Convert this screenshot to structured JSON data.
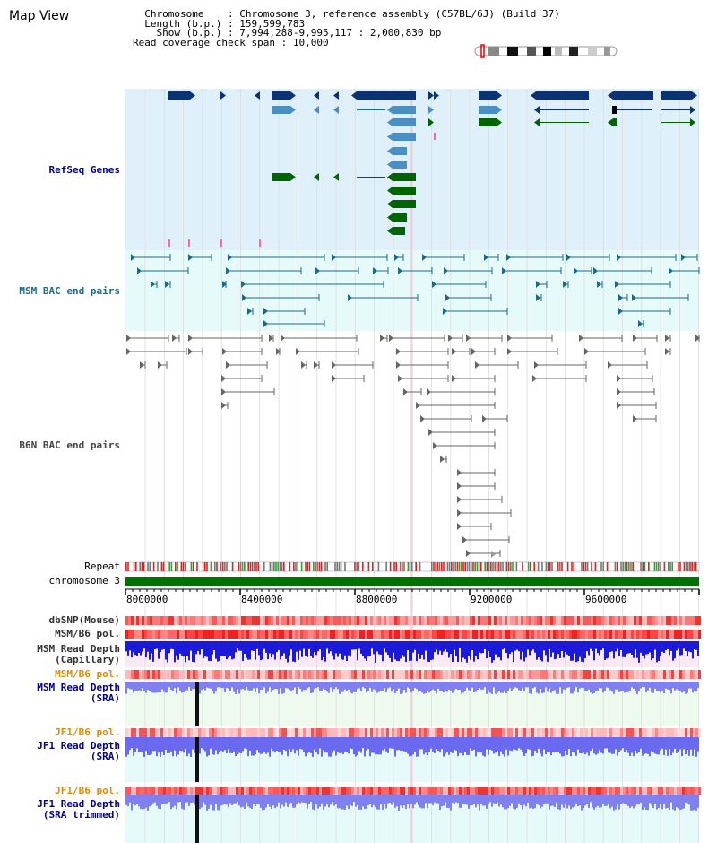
{
  "map_title": "Map View",
  "info": {
    "chromosome_label": "Chromosome",
    "chromosome_value": "Chromosome 3, reference assembly (C57BL/6J) (Build 37)",
    "length_label": "Length (b.p.)",
    "length_value": "159,599,783",
    "show_label": "Show (b.p.)",
    "show_value": "7,994,288-9,995,117 : 2,000,830 bp",
    "coverage_label": "Read coverage check span",
    "coverage_value": "10,000"
  },
  "tracks": {
    "refseq": "RefSeq Genes",
    "msm_bac": "MSM BAC end pairs",
    "b6n_bac": "B6N BAC end pairs",
    "repeat": "Repeat",
    "chromosome": "chromosome 3",
    "dbsnp": "dbSNP(Mouse)",
    "msm_b6_pol_1": "MSM/B6 pol.",
    "msm_depth_cap_1": "MSM Read Depth",
    "msm_depth_cap_2": "(Capillary)",
    "msm_b6_pol_2": "MSM/B6 pol.",
    "msm_depth_sra_1": "MSM Read Depth",
    "msm_depth_sra_2": "(SRA)",
    "jf1_b6_pol_1": "JF1/B6 pol.",
    "jf1_depth_sra_1": "JF1 Read Depth",
    "jf1_depth_sra_2": "(SRA)",
    "jf1_b6_pol_2": "JF1/B6 pol.",
    "jf1_depth_trim_1": "JF1 Read Depth",
    "jf1_depth_trim_2": "(SRA trimmed)"
  },
  "axis": {
    "ticks": [
      {
        "value": 8000000,
        "label": "8000000"
      },
      {
        "value": 8400000,
        "label": "8400000"
      },
      {
        "value": 8800000,
        "label": "8800000"
      },
      {
        "value": 9200000,
        "label": "9200000"
      },
      {
        "value": 9600000,
        "label": "9600000"
      }
    ]
  },
  "colors": {
    "refseq_bg": "#dff0fa",
    "msm_bg": "#e6fafa",
    "gene_dark": "#0b3272",
    "gene_mid": "#4a8fc3",
    "gene_green": "#006400",
    "msm_line": "#1a6b8a",
    "b6n_line": "#666666",
    "chrom_green": "#007000",
    "label_blue": "#00008b",
    "label_teal": "#1a6b8a",
    "label_orange": "#e08a00"
  }
}
